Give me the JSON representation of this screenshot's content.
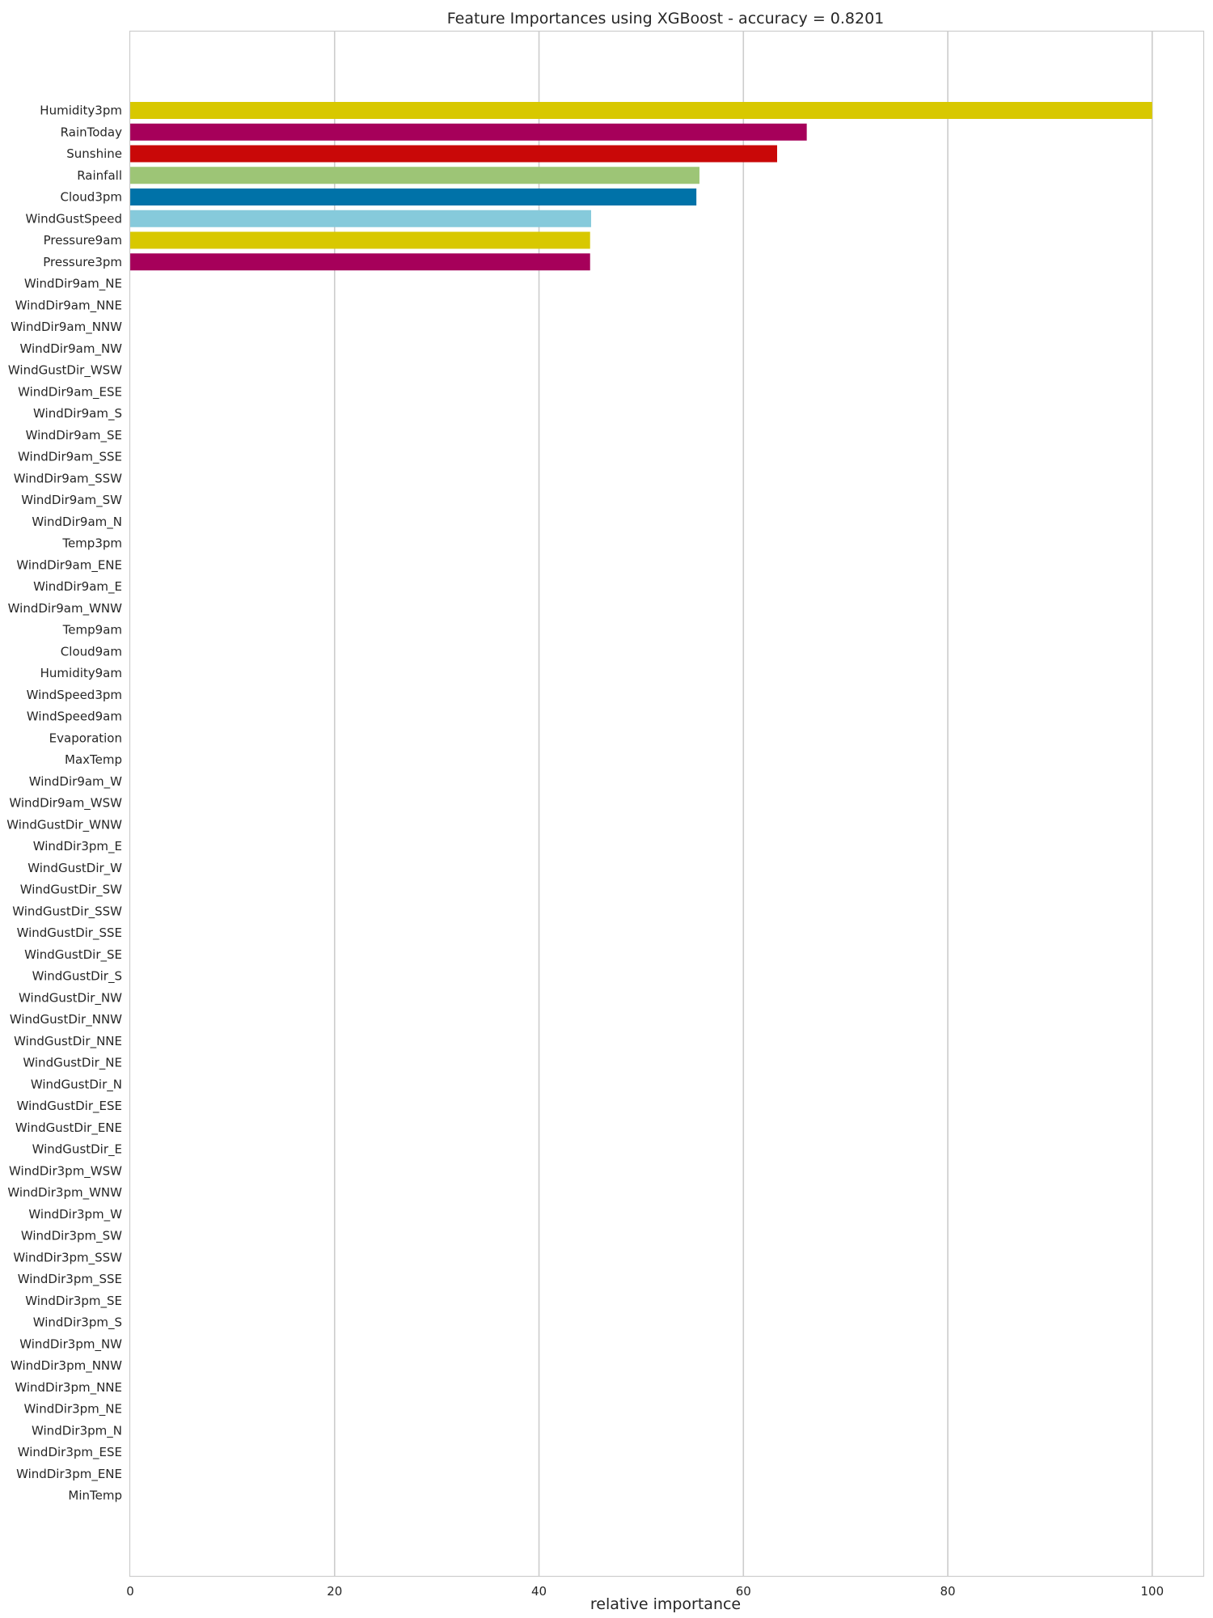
{
  "chart_data": {
    "type": "bar",
    "orientation": "horizontal",
    "title": "Feature Importances using XGBoost - accuracy = 0.8201",
    "xlabel": "relative importance",
    "ylabel": "",
    "xlim": [
      0,
      105
    ],
    "xticks": [
      0,
      20,
      40,
      60,
      80,
      100
    ],
    "grid": "vertical",
    "colors": {
      "yellow": "#d8c800",
      "magenta": "#a6005a",
      "red": "#c90808",
      "green": "#9dc576",
      "blue": "#0072a8",
      "cyan": "#86cadb"
    },
    "categories": [
      "Humidity3pm",
      "RainToday",
      "Sunshine",
      "Rainfall",
      "Cloud3pm",
      "WindGustSpeed",
      "Pressure9am",
      "Pressure3pm",
      "WindDir9am_NE",
      "WindDir9am_NNE",
      "WindDir9am_NNW",
      "WindDir9am_NW",
      "WindGustDir_WSW",
      "WindDir9am_ESE",
      "WindDir9am_S",
      "WindDir9am_SE",
      "WindDir9am_SSE",
      "WindDir9am_SSW",
      "WindDir9am_SW",
      "WindDir9am_N",
      "Temp3pm",
      "WindDir9am_ENE",
      "WindDir9am_E",
      "WindDir9am_WNW",
      "Temp9am",
      "Cloud9am",
      "Humidity9am",
      "WindSpeed3pm",
      "WindSpeed9am",
      "Evaporation",
      "MaxTemp",
      "WindDir9am_W",
      "WindDir9am_WSW",
      "WindGustDir_WNW",
      "WindDir3pm_E",
      "WindGustDir_W",
      "WindGustDir_SW",
      "WindGustDir_SSW",
      "WindGustDir_SSE",
      "WindGustDir_SE",
      "WindGustDir_S",
      "WindGustDir_NW",
      "WindGustDir_NNW",
      "WindGustDir_NNE",
      "WindGustDir_NE",
      "WindGustDir_N",
      "WindGustDir_ESE",
      "WindGustDir_ENE",
      "WindGustDir_E",
      "WindDir3pm_WSW",
      "WindDir3pm_WNW",
      "WindDir3pm_W",
      "WindDir3pm_SW",
      "WindDir3pm_SSW",
      "WindDir3pm_SSE",
      "WindDir3pm_SE",
      "WindDir3pm_S",
      "WindDir3pm_NW",
      "WindDir3pm_NNW",
      "WindDir3pm_NNE",
      "WindDir3pm_NE",
      "WindDir3pm_N",
      "WindDir3pm_ESE",
      "WindDir3pm_ENE",
      "MinTemp"
    ],
    "values": [
      100,
      66.2,
      63.3,
      55.7,
      55.4,
      45.1,
      45.0,
      45.0,
      0,
      0,
      0,
      0,
      0,
      0,
      0,
      0,
      0,
      0,
      0,
      0,
      0,
      0,
      0,
      0,
      0,
      0,
      0,
      0,
      0,
      0,
      0,
      0,
      0,
      0,
      0,
      0,
      0,
      0,
      0,
      0,
      0,
      0,
      0,
      0,
      0,
      0,
      0,
      0,
      0,
      0,
      0,
      0,
      0,
      0,
      0,
      0,
      0,
      0,
      0,
      0,
      0,
      0,
      0,
      0,
      0
    ],
    "bar_colors": [
      "yellow",
      "magenta",
      "red",
      "green",
      "blue",
      "cyan",
      "yellow",
      "magenta"
    ]
  }
}
